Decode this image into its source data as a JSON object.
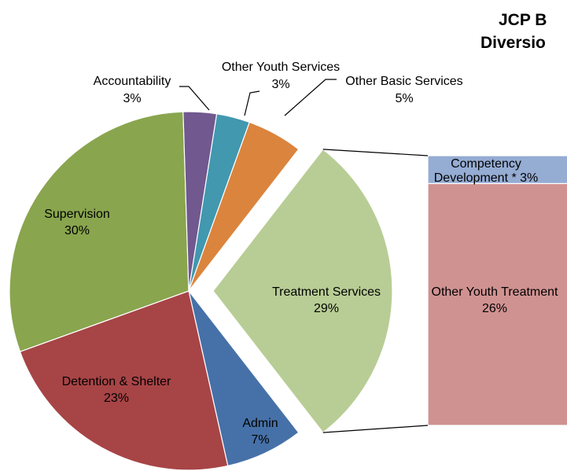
{
  "title_lines": [
    "JCP B",
    "Diversio"
  ],
  "chart_data": {
    "type": "bar-of-pie",
    "pie": {
      "slices": [
        {
          "label": "Treatment Services",
          "percent_label": "29%",
          "value": 29,
          "color": "#b8cd95",
          "exploded": true
        },
        {
          "label": "Admin",
          "percent_label": "7%",
          "value": 7,
          "color": "#4671a8"
        },
        {
          "label": "Detention & Shelter",
          "percent_label": "23%",
          "value": 23,
          "color": "#a74446"
        },
        {
          "label": "Supervision",
          "percent_label": "30%",
          "value": 30,
          "color": "#89a54e"
        },
        {
          "label": "Accountability",
          "percent_label": "3%",
          "value": 3,
          "color": "#71588f"
        },
        {
          "label": "Other Youth Services",
          "percent_label": "3%",
          "value": 3,
          "color": "#4198af"
        },
        {
          "label": "Other Basic Services",
          "percent_label": "5%",
          "value": 5,
          "color": "#db843d"
        }
      ]
    },
    "bar": {
      "segments": [
        {
          "label": "Competency Development * 3%",
          "label_lines": [
            "Competency",
            "Development * 3%"
          ],
          "value": 3,
          "color": "#95acd3"
        },
        {
          "label": "Other Youth Treatment",
          "label_lines": [
            "Other Youth Treatment"
          ],
          "percent_label": "26%",
          "value": 26,
          "color": "#d09291"
        }
      ]
    }
  }
}
